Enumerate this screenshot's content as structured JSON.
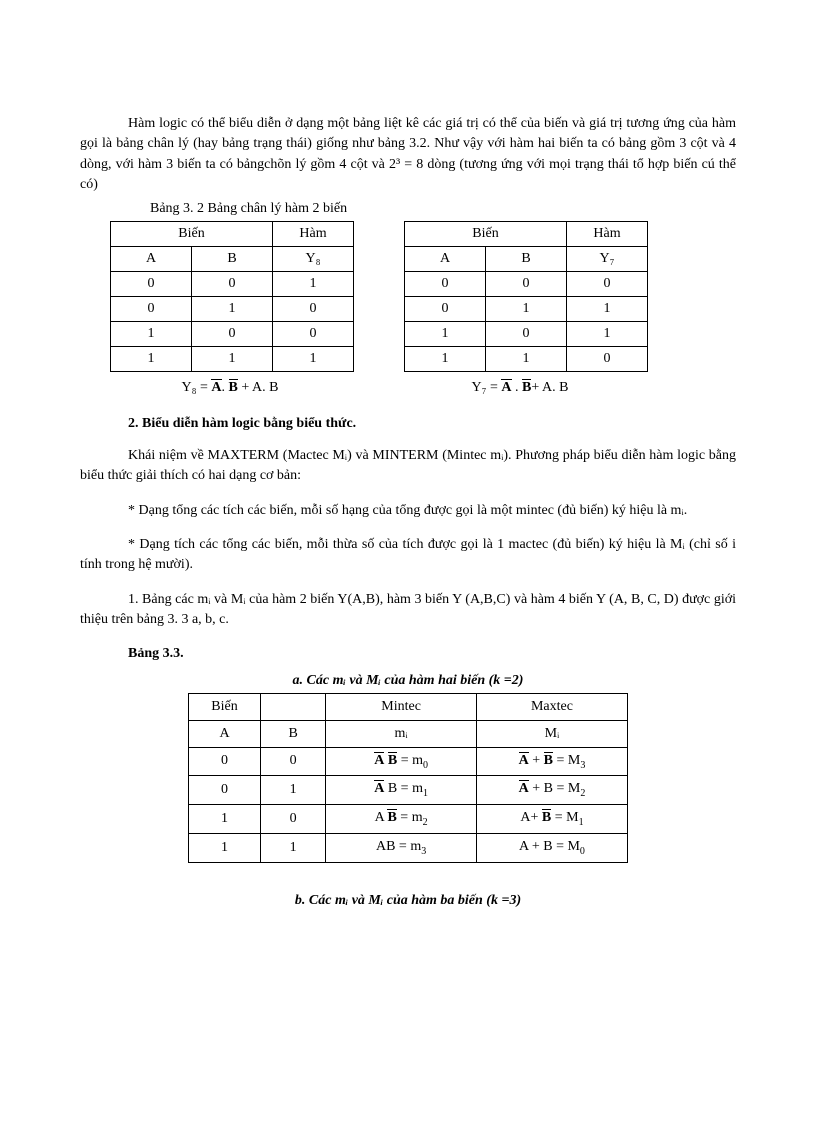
{
  "para1": "Hàm logic có thể biểu diễn ở dạng một bảng liệt kê các giá trị có thể của biến và giá trị tương ứng của hàm gọi là bảng chân lý (hay bảng trạng thái) giống như bảng 3.2. Như vậy với hàm hai biến ta có bảng gồm 3 cột và 4 dòng, với hàm 3 biến ta có bảngchõn lý gồm 4 cột và 2³ = 8 dòng (tương ứng với mọi trạng thái tổ hợp biến cú thể có)",
  "table32_caption": "Bảng 3. 2 Bảng chân lý hàm 2 biến",
  "hdr_bien": "Biến",
  "hdr_ham": "Hàm",
  "hdr_A": "A",
  "hdr_B": "B",
  "hdr_Y8": "Y₈",
  "hdr_Y7": "Y₇",
  "t8": {
    "rows": [
      [
        "0",
        "0",
        "1"
      ],
      [
        "0",
        "1",
        "0"
      ],
      [
        "1",
        "0",
        "0"
      ],
      [
        "1",
        "1",
        "1"
      ]
    ]
  },
  "t7": {
    "rows": [
      [
        "0",
        "0",
        "0"
      ],
      [
        "0",
        "1",
        "1"
      ],
      [
        "1",
        "0",
        "1"
      ],
      [
        "1",
        "1",
        "0"
      ]
    ]
  },
  "formula_y8_pre": "Y₈ = ",
  "formula_y8_post": " + A. B",
  "formula_y7_pre": "Y₇ = ",
  "formula_y7_post": "+ A. B",
  "section2": "2. Biểu diễn hàm logic bằng biểu thức.",
  "para2": "Khái niệm về MAXTERM (Mactec Mᵢ) và MINTERM (Mintec mᵢ). Phương pháp biểu diễn hàm logic bằng biểu thức giải thích có hai dạng cơ bản:",
  "para3": "* Dạng tổng các tích các biến, mỗi số hạng của tổng được gọi là một mintec (đủ biến) ký hiệu là mᵢ.",
  "para4": "* Dạng tích các tổng các biến, mỗi thừa số của tích được gọi là 1 mactec (đủ biến) ký hiệu là Mᵢ (chỉ số i tính trong hệ mười).",
  "para5": "1. Bảng các mᵢ và Mᵢ của hàm 2 biến Y(A,B), hàm 3 biến Y (A,B,C) và hàm 4 biến Y (A, B, C, D) được giới thiệu trên bảng 3. 3 a, b, c.",
  "bang33": "Bảng 3.3.",
  "cap_a": "a. Các mᵢ và Mᵢ của hàm hai biến (k =2)",
  "t33": {
    "hdr_bien": "Biến",
    "hdr_mintec": "Mintec",
    "hdr_maxtec": "Maxtec",
    "hdr_A": "A",
    "hdr_B": "B",
    "hdr_mi": "mᵢ",
    "hdr_Mi": "Mᵢ",
    "rows": [
      {
        "A": "0",
        "B": "0",
        "mi_idx": "0",
        "Mi_idx": "3",
        "mi_Abar": true,
        "mi_Bbar": true,
        "Mi_Abar": true,
        "Mi_Bbar": true
      },
      {
        "A": "0",
        "B": "1",
        "mi_idx": "1",
        "Mi_idx": "2",
        "mi_Abar": true,
        "mi_Bbar": false,
        "Mi_Abar": true,
        "Mi_Bbar": false
      },
      {
        "A": "1",
        "B": "0",
        "mi_idx": "2",
        "Mi_idx": "1",
        "mi_Abar": false,
        "mi_Bbar": true,
        "Mi_Abar": false,
        "Mi_Bbar": true
      },
      {
        "A": "1",
        "B": "1",
        "mi_idx": "3",
        "Mi_idx": "0",
        "mi_Abar": false,
        "mi_Bbar": false,
        "Mi_Abar": false,
        "Mi_Bbar": false
      }
    ]
  },
  "cap_b": "b. Các mᵢ và Mᵢ của hàm ba biến (k =3)"
}
